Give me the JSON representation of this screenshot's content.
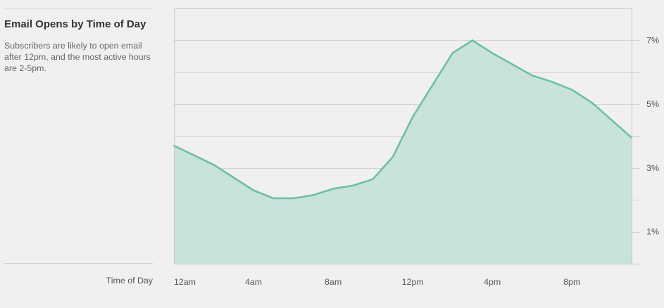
{
  "sidebar": {
    "title": "Email Opens by Time of Day",
    "description": "Subscribers are likely to open email after 12pm, and the most active hours are 2-5pm."
  },
  "chart_data": {
    "type": "area",
    "title": "Email Opens by Time of Day",
    "xlabel": "Time of Day",
    "ylabel": "",
    "x": [
      0,
      1,
      2,
      3,
      4,
      5,
      6,
      7,
      8,
      9,
      10,
      11,
      12,
      13,
      14,
      15,
      16,
      17,
      18,
      19,
      20,
      21,
      22,
      23
    ],
    "x_tick_labels": [
      {
        "at": 0,
        "label": "12am"
      },
      {
        "at": 4,
        "label": "4am"
      },
      {
        "at": 8,
        "label": "8am"
      },
      {
        "at": 12,
        "label": "12pm"
      },
      {
        "at": 16,
        "label": "4pm"
      },
      {
        "at": 20,
        "label": "8pm"
      }
    ],
    "y_tick_labels": [
      {
        "at": 1,
        "label": "1%"
      },
      {
        "at": 3,
        "label": "3%"
      },
      {
        "at": 5,
        "label": "5%"
      },
      {
        "at": 7,
        "label": "7%"
      }
    ],
    "series": [
      {
        "values": [
          3.7,
          3.4,
          3.1,
          2.7,
          2.3,
          2.05,
          2.05,
          2.15,
          2.35,
          2.45,
          2.65,
          3.35,
          4.6,
          5.6,
          6.6,
          7.0,
          6.6,
          6.25,
          5.9,
          5.7,
          5.45,
          5.05,
          4.5,
          3.95
        ],
        "color": "#6fbfa4"
      }
    ],
    "xlim": [
      0,
      23
    ],
    "ylim": [
      0,
      8
    ],
    "grid": true,
    "fill_color": "#c8e2dc",
    "line_color": "#6fbfa4"
  }
}
